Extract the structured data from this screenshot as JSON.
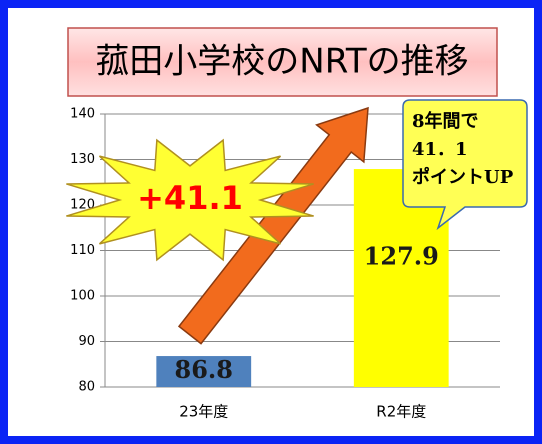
{
  "chart_data": {
    "type": "bar",
    "title": "菰田小学校のNRTの推移",
    "categories": [
      "23年度",
      "R2年度"
    ],
    "values": [
      86.8,
      127.9
    ],
    "colors": [
      "#4f81bd",
      "#ffff00"
    ],
    "ylim": [
      80,
      140
    ],
    "yticks": [
      80,
      90,
      100,
      110,
      120,
      130,
      140
    ],
    "grid": true,
    "annotations": {
      "burst": "+41.1",
      "callout": [
        "8年間で",
        "41．1",
        "ポイントUP"
      ]
    }
  }
}
